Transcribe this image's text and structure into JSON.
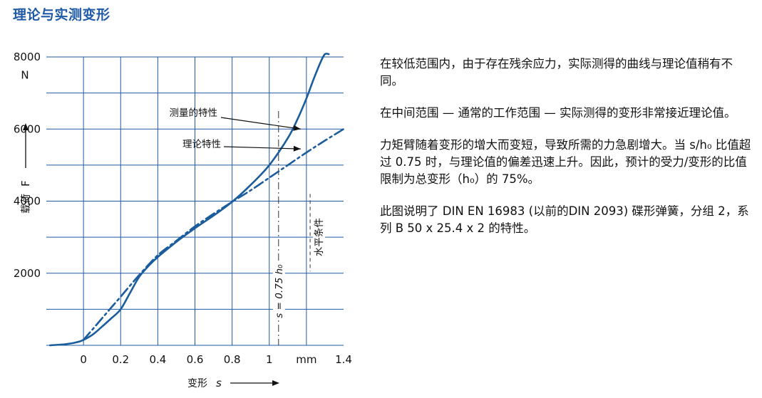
{
  "page": {
    "title": "理论与实测变形",
    "paragraphs": [
      "在较低范围内，由于存在残余应力，实际测得的曲线与理论值稍有不同。",
      "在中间范围 — 通常的工作范围 — 实际测得的变形非常接近理论值。",
      "力矩臂随着变形的增大而变短，导致所需的力急剧增大。当 s/h₀ 比值超过 0.75 时，与理论值的偏差迅速上升。因此，预计的受力/变形的比值限制为总变形（h₀）的 75%。",
      "此图说明了 DIN EN 16983 (以前的DIN 2093) 碟形弹簧，分组 2，系列 B 50 x 25.4 x 2 的特性。"
    ]
  },
  "chart_data": {
    "type": "line",
    "x_range": [
      -0.2,
      1.4
    ],
    "y_range": [
      0,
      8000
    ],
    "grid": true,
    "x_ticks": [
      0,
      0.2,
      0.4,
      0.6,
      0.8,
      1
    ],
    "x_tick_labels": [
      "0",
      "0.2",
      "0.4",
      "0.6",
      "0.8",
      "1"
    ],
    "x_extra_labels": [
      {
        "x": 1.2,
        "text": "mm"
      },
      {
        "x": 1.4,
        "text": "1.4"
      }
    ],
    "y_ticks": [
      2000,
      4000,
      6000,
      8000
    ],
    "y_tick_labels": [
      "2000",
      "4000",
      "6000",
      "8000"
    ],
    "y_unit": "N",
    "xlabel": "变形",
    "xlabel_symbol": "s",
    "ylabel": "载荷",
    "ylabel_symbol": "F",
    "series": [
      {
        "name": "测量的特性",
        "style": "solid",
        "x": [
          -0.18,
          -0.1,
          -0.04,
          0.0,
          0.05,
          0.1,
          0.15,
          0.2,
          0.25,
          0.3,
          0.35,
          0.4,
          0.5,
          0.6,
          0.7,
          0.8,
          0.9,
          1.0,
          1.1,
          1.15,
          1.2,
          1.24,
          1.28,
          1.3,
          1.32
        ],
        "y": [
          0,
          30,
          80,
          150,
          300,
          520,
          750,
          1000,
          1450,
          1900,
          2200,
          2450,
          2870,
          3250,
          3600,
          3980,
          4450,
          5000,
          5750,
          6250,
          6850,
          7400,
          7900,
          8150,
          8400
        ]
      },
      {
        "name": "理论特性",
        "style": "dashdot",
        "x": [
          0.0,
          0.05,
          0.1,
          0.15,
          0.2,
          0.3,
          0.4,
          0.5,
          0.6,
          0.7,
          0.8,
          0.9,
          1.0,
          1.1,
          1.2,
          1.3,
          1.4
        ],
        "y": [
          150,
          450,
          750,
          1050,
          1350,
          1950,
          2500,
          2900,
          3300,
          3650,
          3980,
          4300,
          4650,
          5000,
          5350,
          5680,
          6000
        ]
      }
    ],
    "annotations": [
      {
        "text": "测量的特性",
        "arrow_to": [
          1.2,
          6000
        ]
      },
      {
        "text": "理论特性",
        "arrow_to": [
          1.2,
          5450
        ]
      },
      {
        "text": "s = 0.75 h₀",
        "line_x": 1.05,
        "style": "dashdot",
        "y_from": 0,
        "y_to": 6500
      },
      {
        "text": "水平条件",
        "line_x": 1.22,
        "style": "dashed",
        "y_from": 2050,
        "y_to": 4200
      }
    ],
    "colors": {
      "curve": "#1b5d9c",
      "grid": "#1f5aa6",
      "line": "#333333"
    }
  }
}
